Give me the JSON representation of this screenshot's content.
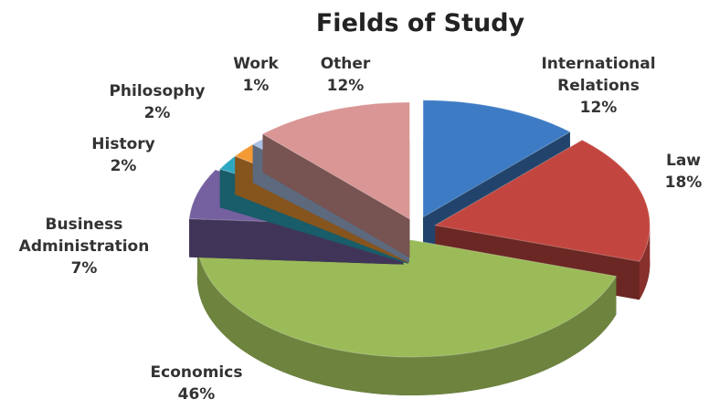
{
  "chart_data": {
    "type": "pie3d",
    "title": "Fields of Study",
    "categories": [
      "International Relations",
      "Law",
      "Economics",
      "Business Administration",
      "History",
      "Philosophy",
      "Work",
      "Other"
    ],
    "values": [
      12,
      18,
      46,
      7,
      2,
      2,
      1,
      12
    ],
    "value_labels": [
      "12%",
      "18%",
      "46%",
      "7%",
      "2%",
      "2%",
      "1%",
      "12%"
    ],
    "colors": [
      "#3d7cc4",
      "#c2463f",
      "#9bbb59",
      "#7560a0",
      "#2ea8c0",
      "#f39a35",
      "#a9bfe3",
      "#d99694"
    ]
  }
}
